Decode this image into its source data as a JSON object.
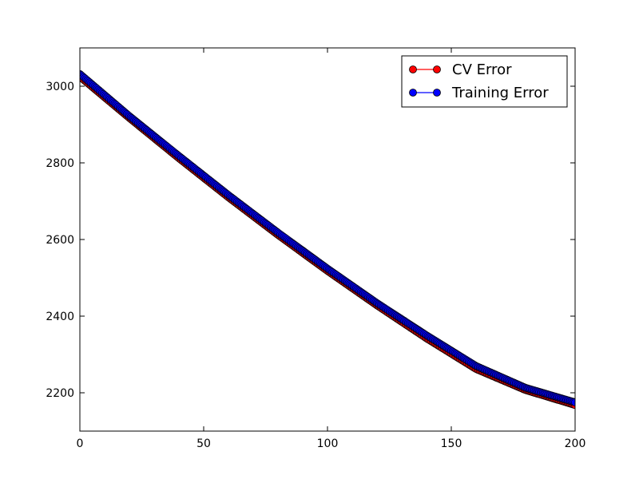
{
  "chart_data": {
    "type": "line",
    "title": "",
    "xlabel": "",
    "ylabel": "",
    "xlim": [
      0,
      200
    ],
    "ylim": [
      2100,
      3100
    ],
    "xticks": [
      0,
      50,
      100,
      150,
      200
    ],
    "yticks": [
      2200,
      2400,
      2600,
      2800,
      3000
    ],
    "grid": false,
    "legend_position": "top-right",
    "x_start": 0,
    "x_end": 200,
    "series": [
      {
        "name": "CV Error",
        "color": "#ff0000",
        "marker": "circle",
        "x": [
          0,
          20,
          40,
          60,
          80,
          100,
          120,
          140,
          160,
          180,
          200
        ],
        "y": [
          3025,
          2917,
          2812,
          2710,
          2612,
          2518,
          2428,
          2342,
          2262,
          2207,
          2168
        ]
      },
      {
        "name": "Training Error",
        "color": "#0000ff",
        "marker": "circle",
        "x": [
          0,
          20,
          40,
          60,
          80,
          100,
          120,
          140,
          160,
          180,
          200
        ],
        "y": [
          3032,
          2922,
          2818,
          2716,
          2618,
          2524,
          2434,
          2350,
          2270,
          2213,
          2175
        ]
      }
    ]
  }
}
